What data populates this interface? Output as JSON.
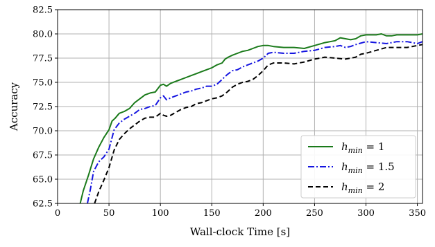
{
  "chart_data": {
    "type": "line",
    "xlabel": "Wall-clock Time [s]",
    "ylabel": "Accuracy",
    "xlim": [
      0,
      355
    ],
    "ylim": [
      62.5,
      82.5
    ],
    "xticks": [
      0,
      50,
      100,
      150,
      200,
      250,
      300,
      350
    ],
    "yticks": [
      62.5,
      65.0,
      67.5,
      70.0,
      72.5,
      75.0,
      77.5,
      80.0,
      82.5
    ],
    "grid": true,
    "legend_position": "bottom-right",
    "series": [
      {
        "name": "h_min = 1",
        "legend_main": "h",
        "legend_sub": "min",
        "legend_rest": " = 1",
        "color": "#1a7a1a",
        "dash": "solid",
        "x": [
          22,
          25,
          30,
          35,
          40,
          45,
          50,
          53,
          56,
          60,
          65,
          70,
          75,
          80,
          85,
          90,
          95,
          100,
          103,
          106,
          110,
          115,
          120,
          125,
          130,
          135,
          140,
          145,
          150,
          155,
          160,
          163,
          166,
          170,
          175,
          180,
          185,
          190,
          195,
          200,
          205,
          210,
          220,
          230,
          240,
          250,
          260,
          270,
          275,
          280,
          285,
          290,
          295,
          300,
          310,
          315,
          320,
          325,
          330,
          340,
          350,
          355
        ],
        "y": [
          62.5,
          63.8,
          65.4,
          67.1,
          68.3,
          69.3,
          70.1,
          71.0,
          71.3,
          71.8,
          72.0,
          72.3,
          72.9,
          73.3,
          73.7,
          73.9,
          74.0,
          74.7,
          74.8,
          74.6,
          74.9,
          75.1,
          75.3,
          75.5,
          75.7,
          75.9,
          76.1,
          76.3,
          76.5,
          76.8,
          77.0,
          77.4,
          77.6,
          77.8,
          78.0,
          78.2,
          78.3,
          78.5,
          78.7,
          78.8,
          78.8,
          78.7,
          78.6,
          78.6,
          78.5,
          78.8,
          79.1,
          79.3,
          79.6,
          79.5,
          79.4,
          79.5,
          79.8,
          79.9,
          79.9,
          80.0,
          79.8,
          79.8,
          79.9,
          79.9,
          79.9,
          80.0
        ]
      },
      {
        "name": "h_min = 1.5",
        "legend_main": "h",
        "legend_sub": "min",
        "legend_rest": " = 1.5",
        "color": "#1515e0",
        "dash": "dashdot",
        "x": [
          29,
          32,
          35,
          40,
          45,
          50,
          55,
          60,
          65,
          70,
          75,
          80,
          85,
          90,
          95,
          100,
          103,
          106,
          110,
          115,
          120,
          125,
          130,
          135,
          140,
          145,
          150,
          155,
          160,
          165,
          170,
          175,
          180,
          185,
          190,
          195,
          200,
          205,
          210,
          220,
          230,
          240,
          250,
          260,
          270,
          275,
          280,
          285,
          290,
          300,
          310,
          320,
          330,
          340,
          350,
          355
        ],
        "y": [
          62.5,
          64.0,
          65.8,
          66.8,
          67.3,
          68.1,
          70.1,
          70.8,
          71.2,
          71.5,
          71.8,
          72.2,
          72.3,
          72.5,
          72.6,
          73.4,
          73.6,
          73.2,
          73.4,
          73.6,
          73.8,
          74.0,
          74.1,
          74.3,
          74.4,
          74.6,
          74.6,
          74.8,
          75.3,
          75.8,
          76.2,
          76.3,
          76.6,
          76.8,
          77.0,
          77.2,
          77.5,
          78.0,
          78.1,
          78.0,
          78.0,
          78.2,
          78.3,
          78.6,
          78.7,
          78.8,
          78.6,
          78.7,
          78.9,
          79.2,
          79.1,
          79.0,
          79.2,
          79.2,
          79.0,
          79.2
        ]
      },
      {
        "name": "h_min = 2",
        "legend_main": "h",
        "legend_sub": "min",
        "legend_rest": " = 2",
        "color": "#000000",
        "dash": "dashed",
        "x": [
          36,
          40,
          45,
          50,
          55,
          60,
          65,
          70,
          75,
          80,
          85,
          90,
          95,
          100,
          103,
          106,
          110,
          115,
          120,
          125,
          130,
          135,
          140,
          145,
          150,
          155,
          160,
          165,
          170,
          175,
          180,
          185,
          190,
          195,
          200,
          205,
          210,
          220,
          230,
          240,
          250,
          260,
          270,
          280,
          290,
          295,
          300,
          310,
          320,
          330,
          340,
          350,
          355
        ],
        "y": [
          62.5,
          63.7,
          64.9,
          66.2,
          68.0,
          69.1,
          69.7,
          70.2,
          70.6,
          71.0,
          71.3,
          71.4,
          71.4,
          71.8,
          71.6,
          71.5,
          71.6,
          71.9,
          72.2,
          72.4,
          72.5,
          72.8,
          72.9,
          73.1,
          73.3,
          73.4,
          73.6,
          74.0,
          74.5,
          74.8,
          75.0,
          75.1,
          75.3,
          75.7,
          76.2,
          76.8,
          77.0,
          77.0,
          76.9,
          77.1,
          77.4,
          77.6,
          77.5,
          77.4,
          77.6,
          77.9,
          78.0,
          78.3,
          78.6,
          78.6,
          78.6,
          78.8,
          78.9
        ]
      }
    ]
  }
}
